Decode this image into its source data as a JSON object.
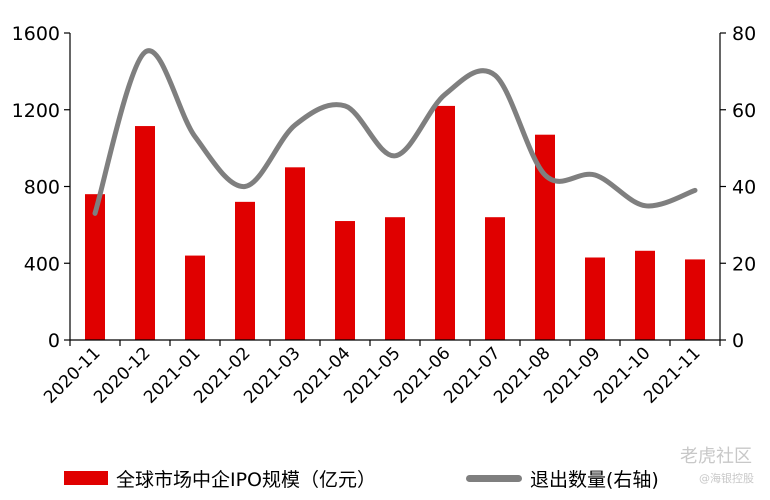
{
  "chart_data": {
    "type": "bar",
    "categories": [
      "2020-11",
      "2020-12",
      "2021-01",
      "2021-02",
      "2021-03",
      "2021-04",
      "2021-05",
      "2021-06",
      "2021-07",
      "2021-08",
      "2021-09",
      "2021-10",
      "2021-11"
    ],
    "series": [
      {
        "name": "全球市场中企IPO规模（亿元）",
        "type": "bar",
        "axis": "left",
        "color": "#e00000",
        "values": [
          760,
          1115,
          440,
          720,
          900,
          620,
          640,
          1220,
          640,
          1070,
          430,
          465,
          420
        ]
      },
      {
        "name": "退出数量(右轴)",
        "type": "line",
        "axis": "right",
        "color": "#7f7f7f",
        "values": [
          33,
          75,
          53,
          40,
          56,
          61,
          48,
          64,
          69,
          43,
          43,
          35,
          39
        ]
      }
    ],
    "ylim": [
      0,
      1600
    ],
    "yticks": [
      0,
      400,
      800,
      1200,
      1600
    ],
    "y2lim": [
      0,
      80
    ],
    "y2ticks": [
      0,
      20,
      40,
      60,
      80
    ],
    "legend_position": "bottom"
  },
  "watermark": {
    "text": "老虎社区",
    "subtext": "@海银控股"
  }
}
